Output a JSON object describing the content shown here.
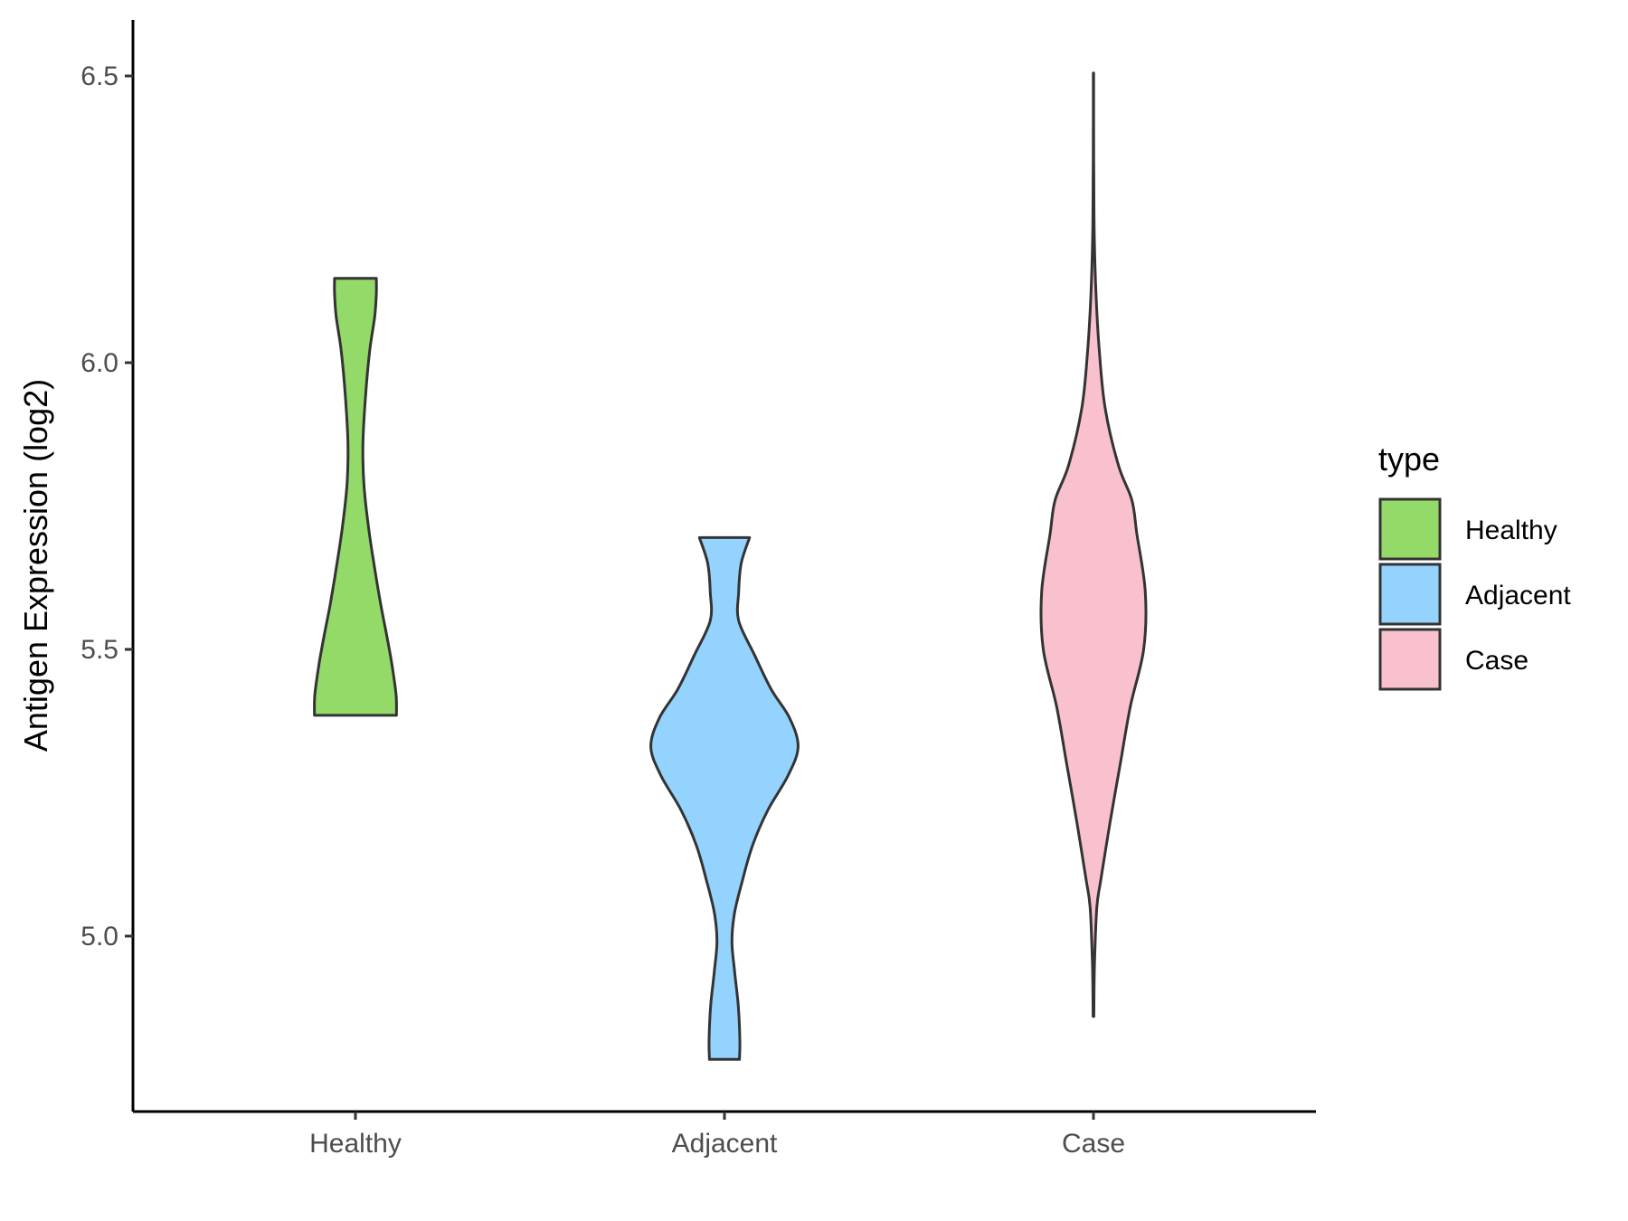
{
  "chart_data": {
    "type": "violin",
    "title": "",
    "xlabel": "",
    "ylabel": "Antigen Expression (log2)",
    "categories": [
      "Healthy",
      "Adjacent",
      "Case"
    ],
    "ylim": [
      4.71,
      6.6
    ],
    "yticks": [
      "5.0",
      "5.5",
      "6.0",
      "6.5"
    ],
    "grid": false,
    "legend": {
      "title": "type",
      "position": "right",
      "entries": [
        "Healthy",
        "Adjacent",
        "Case"
      ]
    },
    "series": [
      {
        "name": "Healthy",
        "color": "#93da69",
        "min": 5.385,
        "max": 6.147,
        "profile": [
          [
            5.385,
            0.245
          ],
          [
            5.42,
            0.243
          ],
          [
            5.47,
            0.22
          ],
          [
            5.52,
            0.19
          ],
          [
            5.58,
            0.15
          ],
          [
            5.65,
            0.11
          ],
          [
            5.72,
            0.075
          ],
          [
            5.79,
            0.05
          ],
          [
            5.86,
            0.045
          ],
          [
            5.94,
            0.06
          ],
          [
            6.02,
            0.085
          ],
          [
            6.08,
            0.115
          ],
          [
            6.12,
            0.125
          ],
          [
            6.147,
            0.125
          ]
        ]
      },
      {
        "name": "Adjacent",
        "color": "#93d3fe",
        "min": 4.785,
        "max": 5.695,
        "profile": [
          [
            4.785,
            0.09
          ],
          [
            4.82,
            0.092
          ],
          [
            4.88,
            0.082
          ],
          [
            4.94,
            0.06
          ],
          [
            4.99,
            0.045
          ],
          [
            5.04,
            0.06
          ],
          [
            5.1,
            0.11
          ],
          [
            5.16,
            0.17
          ],
          [
            5.22,
            0.26
          ],
          [
            5.28,
            0.38
          ],
          [
            5.33,
            0.44
          ],
          [
            5.38,
            0.39
          ],
          [
            5.43,
            0.28
          ],
          [
            5.49,
            0.18
          ],
          [
            5.55,
            0.085
          ],
          [
            5.6,
            0.085
          ],
          [
            5.65,
            0.1
          ],
          [
            5.695,
            0.15
          ]
        ]
      },
      {
        "name": "Case",
        "color": "#f8c1cd",
        "min": 4.86,
        "max": 6.505,
        "profile": [
          [
            4.86,
            0.002
          ],
          [
            4.95,
            0.006
          ],
          [
            5.05,
            0.02
          ],
          [
            5.1,
            0.045
          ],
          [
            5.2,
            0.1
          ],
          [
            5.3,
            0.16
          ],
          [
            5.4,
            0.22
          ],
          [
            5.5,
            0.3
          ],
          [
            5.6,
            0.31
          ],
          [
            5.7,
            0.26
          ],
          [
            5.76,
            0.23
          ],
          [
            5.82,
            0.15
          ],
          [
            5.92,
            0.07
          ],
          [
            6.02,
            0.035
          ],
          [
            6.12,
            0.015
          ],
          [
            6.22,
            0.005
          ],
          [
            6.32,
            0.002
          ],
          [
            6.42,
            0.001
          ],
          [
            6.505,
            0.001
          ]
        ]
      }
    ]
  }
}
